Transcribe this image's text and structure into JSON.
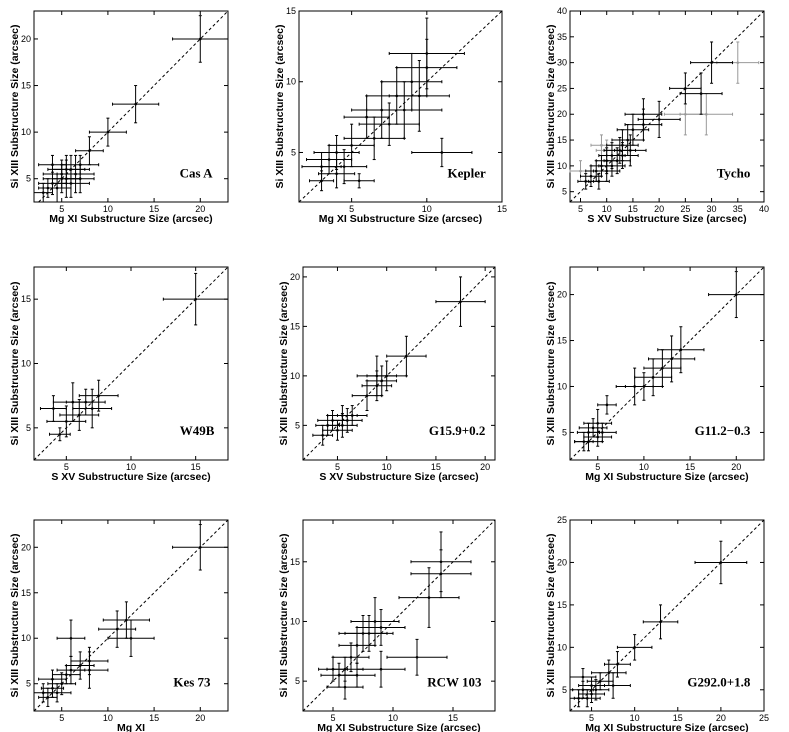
{
  "figure": {
    "panels": [
      {
        "label": "Cas A",
        "xlabel": "Mg XI Substructure Size (arcsec)",
        "ylabel": "Si XIII Substructure Size (arcsec)"
      },
      {
        "label": "Kepler",
        "xlabel": "Mg XI Substructure Size (arcsec)",
        "ylabel": "Si XIII Substructure Size (arcsec)"
      },
      {
        "label": "Tycho",
        "xlabel": "S XV Substructure Size (arcsec)",
        "ylabel": "Si XIII Substructure Size (arcsec)"
      },
      {
        "label": "W49B",
        "xlabel": "S XV Substructure Size (arcsec)",
        "ylabel": "Si XIII Substructure Size (arcsec)"
      },
      {
        "label": "G15.9+0.2",
        "xlabel": "S XV Substructure Size (arcsec)",
        "ylabel": "Si XIII Substructure Size (arcsec)"
      },
      {
        "label": "G11.2−0.3",
        "xlabel": "Mg XI Substructure Size (arcsec)",
        "ylabel": "Si XIII Substructure Size (arcsec)"
      },
      {
        "label": "Kes 73",
        "xlabel": "Mg XI",
        "ylabel": "Si XIII Substructure Size (arcsec)"
      },
      {
        "label": "RCW 103",
        "xlabel": "Mg XI Substructure Size (arcsec)",
        "ylabel": "Si XIII Substructure Size (arcsec)"
      },
      {
        "label": "G292.0+1.8",
        "xlabel": "Mg XI Substructure Size (arcsec)",
        "ylabel": "Si XIII Substructure Size (arcsec)"
      }
    ]
  },
  "chart_data": [
    {
      "type": "scatter",
      "title": "Cas A",
      "xlabel": "Mg XI Substructure Size (arcsec)",
      "ylabel": "Si XIII Substructure Size (arcsec)",
      "xlim": [
        2,
        23
      ],
      "ylim": [
        2.5,
        23
      ],
      "xticks": [
        5,
        10,
        15,
        20
      ],
      "yticks": [
        5,
        10,
        15,
        20
      ],
      "reference_line": "y = x (dashed)",
      "points": [
        [
          3,
          3.5,
          1,
          1
        ],
        [
          3.5,
          4,
          1,
          1
        ],
        [
          4,
          4.5,
          1.5,
          1.2
        ],
        [
          4,
          6.5,
          1.5,
          1
        ],
        [
          4.5,
          4,
          1.5,
          1.5
        ],
        [
          5,
          5.5,
          2,
          1.5
        ],
        [
          5,
          5,
          2,
          1.5
        ],
        [
          5.5,
          6,
          2,
          1.5
        ],
        [
          5.5,
          5,
          1.5,
          2
        ],
        [
          6,
          4.5,
          2,
          1.5
        ],
        [
          6,
          6,
          2,
          1.5
        ],
        [
          6.5,
          5.5,
          2,
          2
        ],
        [
          7,
          6.5,
          2,
          1
        ],
        [
          7,
          5,
          1.5,
          1.5
        ],
        [
          8,
          8,
          1.5,
          1.5
        ],
        [
          10,
          10,
          2,
          1.5
        ],
        [
          13,
          13,
          2.5,
          2
        ],
        [
          20,
          20,
          3,
          2.5
        ]
      ]
    },
    {
      "type": "scatter",
      "title": "Kepler",
      "xlabel": "Mg XI Substructure Size (arcsec)",
      "ylabel": "Si XIII Substructure Size (arcsec)",
      "xlim": [
        1.5,
        15
      ],
      "ylim": [
        1.5,
        15
      ],
      "xticks": [
        5,
        10,
        15
      ],
      "yticks": [
        5,
        10,
        15
      ],
      "reference_line": "y = x (dashed)",
      "points": [
        [
          3,
          3,
          0.8,
          0.7
        ],
        [
          3,
          4,
          1.3,
          1
        ],
        [
          3.5,
          4.5,
          1.5,
          1
        ],
        [
          4,
          3.5,
          1.2,
          1
        ],
        [
          4,
          5,
          1.5,
          1.2
        ],
        [
          4.5,
          4,
          1.5,
          1.2
        ],
        [
          5,
          5.5,
          1.5,
          1.5
        ],
        [
          5.5,
          3,
          1,
          0.5
        ],
        [
          6,
          7.5,
          1.5,
          1.5
        ],
        [
          6.5,
          6,
          2,
          1.5
        ],
        [
          7,
          8,
          2,
          2
        ],
        [
          7.5,
          7,
          2,
          1.5
        ],
        [
          8,
          9,
          2,
          2
        ],
        [
          8.5,
          8,
          2.5,
          2
        ],
        [
          9,
          10,
          2,
          2
        ],
        [
          9.5,
          9,
          2,
          2.5
        ],
        [
          10,
          11,
          2,
          2
        ],
        [
          10,
          12,
          2.5,
          2.5
        ],
        [
          11,
          5,
          2,
          1
        ]
      ]
    },
    {
      "type": "scatter",
      "title": "Tycho",
      "xlabel": "S XV Substructure Size (arcsec)",
      "ylabel": "Si XIII Substructure Size (arcsec)",
      "xlim": [
        3,
        40
      ],
      "ylim": [
        3,
        40
      ],
      "xticks": [
        5,
        10,
        15,
        20,
        25,
        30,
        35,
        40
      ],
      "yticks": [
        5,
        10,
        15,
        20,
        25,
        30,
        35,
        40
      ],
      "reference_line": "y = x (dashed)",
      "points": [
        [
          6,
          7,
          1.5,
          1.5
        ],
        [
          7,
          8,
          2,
          2
        ],
        [
          8,
          9,
          2,
          2
        ],
        [
          8.5,
          7,
          2,
          1.5
        ],
        [
          9,
          10,
          2,
          2
        ],
        [
          10,
          9,
          2.5,
          2
        ],
        [
          10,
          11,
          2,
          2.5
        ],
        [
          11,
          10,
          2.5,
          2
        ],
        [
          11,
          12,
          2.5,
          2.5
        ],
        [
          12,
          11,
          2.5,
          2.5
        ],
        [
          12.5,
          13,
          3,
          2.5
        ],
        [
          13,
          12,
          3,
          2.5
        ],
        [
          13,
          14,
          3,
          3
        ],
        [
          14,
          15,
          3,
          3
        ],
        [
          14.5,
          13,
          3,
          3
        ],
        [
          15,
          17,
          3,
          3
        ],
        [
          17,
          18,
          3.5,
          3
        ],
        [
          17,
          20,
          3.5,
          3
        ],
        [
          20,
          19,
          4,
          3.5
        ],
        [
          25,
          25,
          3,
          3
        ],
        [
          28,
          24,
          4,
          4
        ],
        [
          30,
          30,
          4,
          4
        ]
      ],
      "faint_points": [
        [
          5,
          9,
          2,
          2
        ],
        [
          9,
          14,
          2,
          2
        ],
        [
          10,
          13,
          2,
          2
        ],
        [
          25,
          20,
          4,
          4
        ],
        [
          29,
          20,
          5,
          4
        ],
        [
          35,
          30,
          4,
          4
        ]
      ]
    },
    {
      "type": "scatter",
      "title": "W49B",
      "xlabel": "S XV Substructure Size (arcsec)",
      "ylabel": "Si XIII Substructure Size (arcsec)",
      "xlim": [
        2.5,
        17.5
      ],
      "ylim": [
        2.5,
        17.5
      ],
      "xticks": [
        5,
        10,
        15
      ],
      "yticks": [
        5,
        10,
        15
      ],
      "reference_line": "y = x (dashed)",
      "points": [
        [
          4,
          6.5,
          1,
          1
        ],
        [
          4.5,
          4.5,
          0.8,
          0.5
        ],
        [
          5,
          5.5,
          1.5,
          1.2
        ],
        [
          5.5,
          7,
          1.5,
          1.5
        ],
        [
          6,
          6,
          1.5,
          1.2
        ],
        [
          6.5,
          7,
          1.5,
          1
        ],
        [
          7,
          6.5,
          1.5,
          1.5
        ],
        [
          7.5,
          7.5,
          1.5,
          1.2
        ],
        [
          15,
          15,
          2.5,
          2
        ]
      ]
    },
    {
      "type": "scatter",
      "title": "G15.9+0.2",
      "xlabel": "S XV Substructure Size (arcsec)",
      "ylabel": "Si XIII Substructure Size (arcsec)",
      "xlim": [
        1.5,
        21
      ],
      "ylim": [
        1.5,
        21
      ],
      "xticks": [
        5,
        10,
        15,
        20
      ],
      "yticks": [
        5,
        10,
        15,
        20
      ],
      "reference_line": "y = x (dashed)",
      "points": [
        [
          3.5,
          4,
          1,
          1
        ],
        [
          4,
          5,
          1.2,
          1
        ],
        [
          4.5,
          5.5,
          1.5,
          1
        ],
        [
          5,
          4.5,
          1.5,
          1
        ],
        [
          5.5,
          5,
          1.5,
          1.2
        ],
        [
          5.5,
          6,
          1.5,
          1
        ],
        [
          6,
          5.5,
          1.5,
          1.2
        ],
        [
          6.5,
          6,
          1.5,
          1
        ],
        [
          8,
          8,
          1.5,
          1.5
        ],
        [
          9,
          9,
          1.5,
          1.5
        ],
        [
          9,
          10,
          2,
          2
        ],
        [
          9.5,
          9.5,
          1.5,
          1.5
        ],
        [
          10,
          10,
          2,
          1.5
        ],
        [
          12,
          12,
          2,
          2
        ],
        [
          17.5,
          17.5,
          2.5,
          2.5
        ]
      ]
    },
    {
      "type": "scatter",
      "title": "G11.2−0.3",
      "xlabel": "Mg XI Substructure Size (arcsec)",
      "ylabel": "Si XIII Substructure Size (arcsec)",
      "xlim": [
        2,
        23
      ],
      "ylim": [
        2,
        23
      ],
      "xticks": [
        5,
        10,
        15,
        20
      ],
      "yticks": [
        5,
        10,
        15,
        20
      ],
      "reference_line": "y = x (dashed)",
      "points": [
        [
          3.5,
          4,
          1,
          1
        ],
        [
          4,
          5,
          1.2,
          1
        ],
        [
          4,
          4,
          1.5,
          1
        ],
        [
          4.5,
          5.5,
          1.5,
          1
        ],
        [
          5,
          4.5,
          1.5,
          1
        ],
        [
          5,
          6,
          1.5,
          1.5
        ],
        [
          5.5,
          5,
          1.5,
          1
        ],
        [
          6,
          8,
          1,
          1
        ],
        [
          9,
          10,
          2,
          2
        ],
        [
          10,
          10,
          2,
          1.5
        ],
        [
          11,
          11,
          2,
          2
        ],
        [
          12,
          12,
          2,
          2
        ],
        [
          13,
          13,
          2.5,
          2.5
        ],
        [
          14,
          14,
          2.5,
          2.5
        ],
        [
          20,
          20,
          3,
          2.5
        ]
      ]
    },
    {
      "type": "scatter",
      "title": "Kes 73",
      "xlabel": "Mg XI",
      "ylabel": "Si XIII Substructure Size (arcsec)",
      "xlim": [
        2,
        23
      ],
      "ylim": [
        2,
        23
      ],
      "xticks": [
        5,
        10,
        15,
        20
      ],
      "yticks": [
        5,
        10,
        15,
        20
      ],
      "reference_line": "y = x (dashed)",
      "points": [
        [
          3,
          4,
          1,
          1
        ],
        [
          3.5,
          3.5,
          1,
          1
        ],
        [
          4,
          4.5,
          1.2,
          1
        ],
        [
          4,
          5.5,
          1.5,
          1
        ],
        [
          4.5,
          4,
          1.5,
          1
        ],
        [
          5,
          5,
          1.5,
          1.2
        ],
        [
          5.5,
          6,
          1.5,
          1
        ],
        [
          6,
          6.5,
          1.5,
          1.5
        ],
        [
          6,
          10,
          1.5,
          2
        ],
        [
          7,
          7,
          1.5,
          1.5
        ],
        [
          8,
          6.5,
          2,
          2
        ],
        [
          8,
          7.5,
          2,
          1.5
        ],
        [
          11,
          11,
          2,
          2
        ],
        [
          12,
          12,
          2.5,
          2
        ],
        [
          12.5,
          10,
          2.5,
          2
        ],
        [
          20,
          20,
          3,
          2.5
        ]
      ]
    },
    {
      "type": "scatter",
      "title": "RCW 103",
      "xlabel": "Mg XI Substructure Size (arcsec)",
      "ylabel": "Si XIII Substructure Size (arcsec)",
      "xlim": [
        2.5,
        18.5
      ],
      "ylim": [
        2.5,
        18.5
      ],
      "xticks": [
        5,
        10,
        15
      ],
      "yticks": [
        5,
        10,
        15
      ],
      "reference_line": "y = x (dashed)",
      "points": [
        [
          5,
          6,
          1.2,
          1
        ],
        [
          5.5,
          5.5,
          1.5,
          1
        ],
        [
          6,
          4.5,
          1.5,
          1
        ],
        [
          6,
          6,
          1.5,
          1
        ],
        [
          6.5,
          7,
          1.5,
          1.2
        ],
        [
          7,
          8,
          1.5,
          1.5
        ],
        [
          7,
          5.5,
          1.5,
          1
        ],
        [
          7.5,
          9,
          2,
          1.5
        ],
        [
          8,
          9,
          2,
          1.5
        ],
        [
          8.5,
          10,
          2,
          2
        ],
        [
          9,
          9.5,
          2,
          1.5
        ],
        [
          9,
          6,
          2,
          1.5
        ],
        [
          12,
          7,
          2.5,
          1.5
        ],
        [
          13,
          12,
          2.5,
          2.5
        ],
        [
          14,
          14,
          2.5,
          2
        ],
        [
          14,
          15,
          2.5,
          2.5
        ]
      ]
    },
    {
      "type": "scatter",
      "title": "G292.0+1.8",
      "xlabel": "Mg XI Substructure Size (arcsec)",
      "ylabel": "Si XIII Substructure Size (arcsec)",
      "xlim": [
        2.5,
        25
      ],
      "ylim": [
        2.5,
        25
      ],
      "xticks": [
        5,
        10,
        15,
        20,
        25
      ],
      "yticks": [
        5,
        10,
        15,
        20,
        25
      ],
      "reference_line": "y = x (dashed)",
      "points": [
        [
          3.5,
          4,
          1,
          1
        ],
        [
          4,
          5,
          1.2,
          1
        ],
        [
          4,
          6.5,
          1.5,
          1
        ],
        [
          4.5,
          4,
          1.5,
          1
        ],
        [
          5,
          5.5,
          1.5,
          1
        ],
        [
          5,
          4.5,
          1.5,
          1
        ],
        [
          5.5,
          5,
          1.5,
          1.2
        ],
        [
          6,
          6,
          1.5,
          1
        ],
        [
          7,
          7,
          2,
          1.5
        ],
        [
          7.5,
          5.5,
          2,
          1.5
        ],
        [
          8,
          8,
          1.5,
          1.5
        ],
        [
          10,
          10,
          2,
          1.5
        ],
        [
          13,
          13,
          2,
          2
        ],
        [
          20,
          20,
          3,
          2.5
        ]
      ]
    }
  ]
}
